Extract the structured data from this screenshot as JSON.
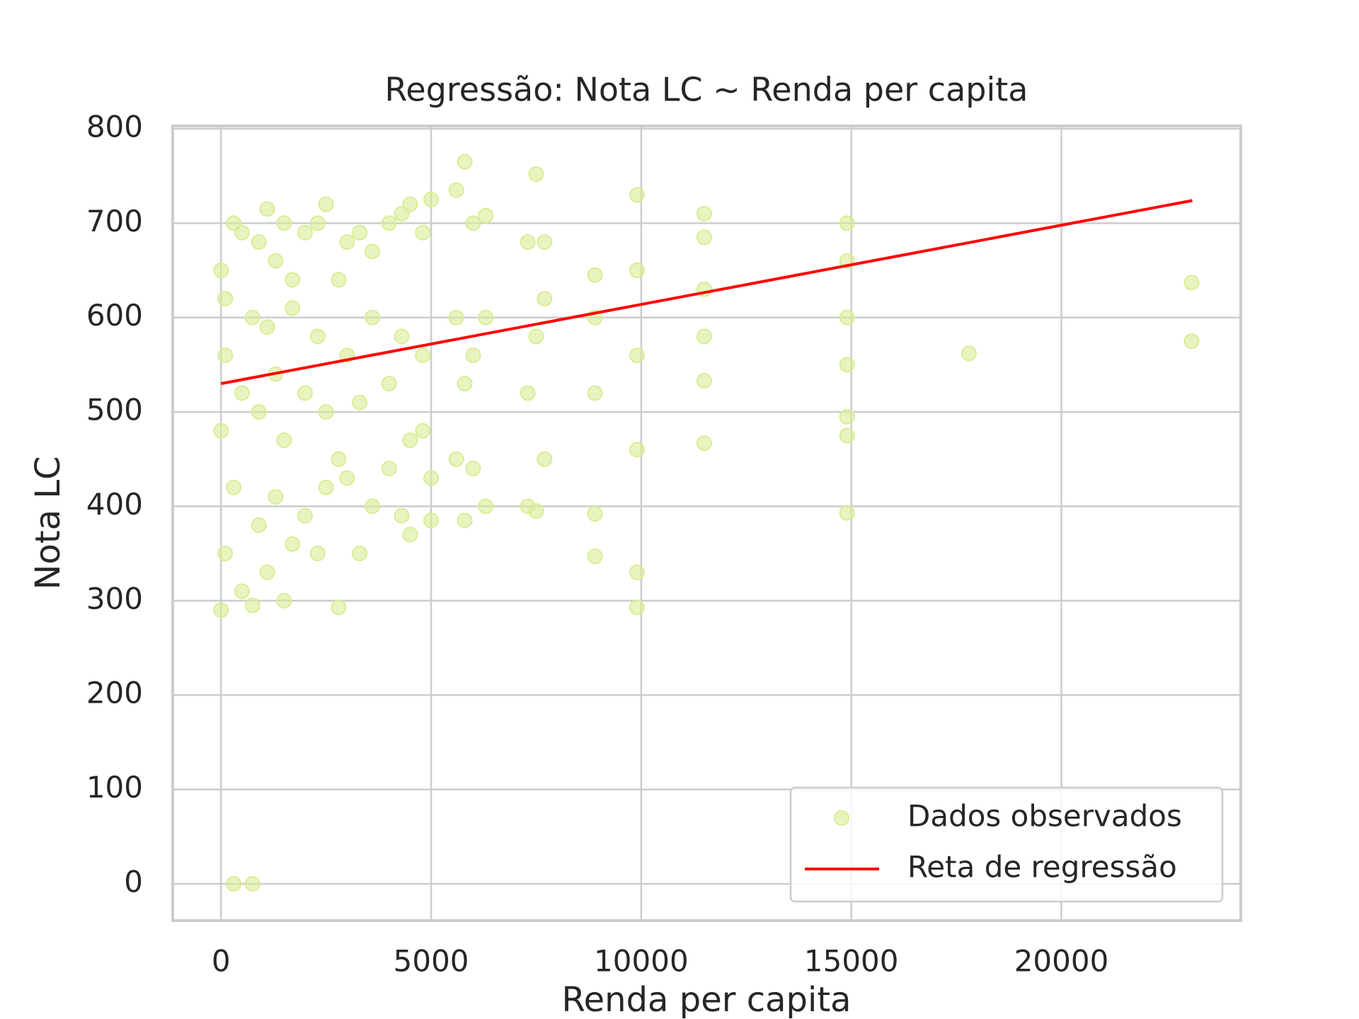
{
  "chart_data": {
    "type": "scatter",
    "title": "Regressão: Nota LC ~ Renda per capita",
    "x_label": "Renda per capita",
    "y_label": "Nota LC",
    "xlim": [
      -1150,
      24270
    ],
    "ylim": [
      -39,
      803
    ],
    "xticks": [
      0,
      5000,
      10000,
      15000,
      20000
    ],
    "yticks": [
      0,
      100,
      200,
      300,
      400,
      500,
      600,
      700,
      800
    ],
    "grid": true,
    "legend": "lower right",
    "series": [
      {
        "name": "Dados observados",
        "color": "#d9ec95",
        "type": "scatter",
        "x": [
          0,
          0,
          0,
          100,
          100,
          100,
          300,
          300,
          300,
          500,
          500,
          500,
          750,
          750,
          750,
          900,
          900,
          900,
          1100,
          1100,
          1100,
          1300,
          1300,
          1300,
          1500,
          1500,
          1500,
          1700,
          1700,
          1700,
          2000,
          2000,
          2000,
          2300,
          2300,
          2300,
          2500,
          2500,
          2500,
          2800,
          2800,
          2800,
          3000,
          3000,
          3000,
          3300,
          3300,
          3300,
          3600,
          3600,
          3600,
          4000,
          4000,
          4000,
          4300,
          4300,
          4300,
          4500,
          4500,
          4500,
          4800,
          4800,
          4800,
          5000,
          5000,
          5000,
          5600,
          5600,
          5600,
          5800,
          5800,
          5800,
          6000,
          6000,
          6000,
          6300,
          6300,
          6300,
          7300,
          7300,
          7300,
          7500,
          7500,
          7500,
          7700,
          7700,
          7700,
          8900,
          8900,
          8900,
          8900,
          8900,
          9900,
          9900,
          9900,
          9900,
          9900,
          9900,
          11500,
          11500,
          11500,
          11500,
          11500,
          11500,
          14900,
          14900,
          14900,
          14900,
          14900,
          14900,
          14900,
          17800,
          23100,
          23100
        ],
        "values": [
          290,
          480,
          650,
          350,
          560,
          620,
          0,
          420,
          700,
          310,
          520,
          690,
          0,
          295,
          600,
          380,
          500,
          680,
          330,
          590,
          715,
          410,
          540,
          660,
          300,
          470,
          700,
          360,
          610,
          640,
          390,
          520,
          690,
          350,
          580,
          700,
          420,
          500,
          720,
          293,
          450,
          640,
          430,
          560,
          680,
          350,
          510,
          690,
          400,
          600,
          670,
          440,
          530,
          700,
          390,
          580,
          710,
          370,
          470,
          720,
          480,
          560,
          690,
          385,
          430,
          725,
          450,
          600,
          735,
          385,
          530,
          765,
          440,
          560,
          700,
          400,
          600,
          708,
          400,
          520,
          680,
          395,
          580,
          752,
          450,
          620,
          680,
          347,
          392,
          520,
          600,
          645,
          293,
          330,
          460,
          560,
          650,
          730,
          467,
          533,
          580,
          630,
          685,
          710,
          393,
          475,
          495,
          550,
          600,
          660,
          700,
          562,
          575,
          637
        ]
      },
      {
        "name": "Reta de regressão",
        "color": "#ff0000",
        "type": "line",
        "x": [
          0,
          23117
        ],
        "values": [
          530,
          724
        ]
      }
    ]
  }
}
